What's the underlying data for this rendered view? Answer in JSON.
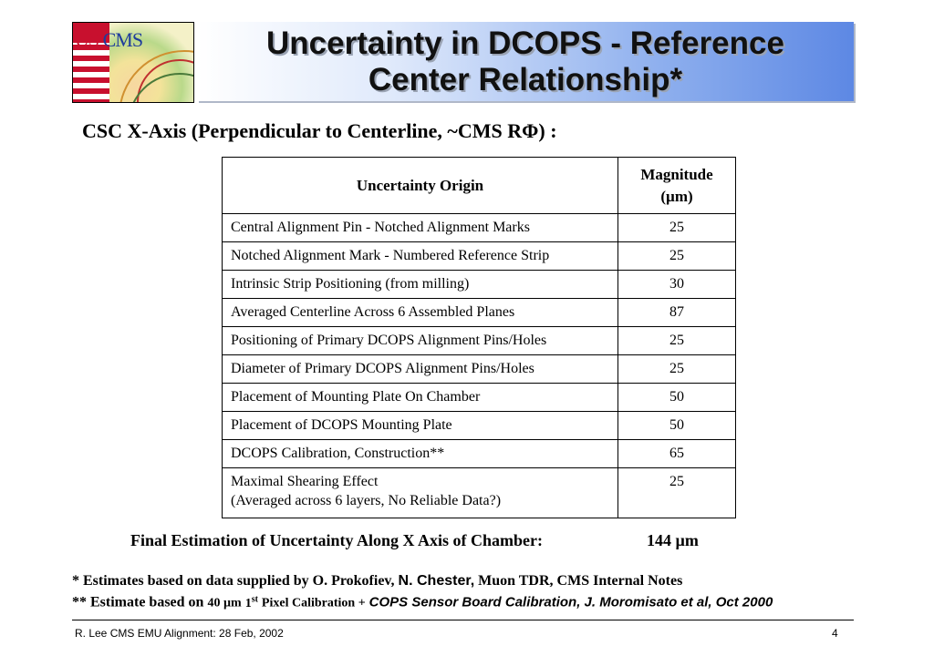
{
  "logo": {
    "text_us": "US",
    "text_cms": "CMS"
  },
  "title": {
    "line1": "Uncertainty in DCOPS - Reference",
    "line2": "Center Relationship*"
  },
  "subtitle": "CSC X-Axis (Perpendicular to Centerline, ~CMS RΦ) :",
  "table": {
    "headers": {
      "origin": "Uncertainty Origin",
      "magnitude_line1": "Magnitude",
      "magnitude_line2": "(µm)"
    },
    "rows": [
      {
        "origin": "Central Alignment Pin - Notched Alignment Marks",
        "magnitude": "25"
      },
      {
        "origin": "Notched Alignment Mark - Numbered Reference Strip",
        "magnitude": "25"
      },
      {
        "origin": "Intrinsic Strip Positioning (from milling)",
        "magnitude": "30"
      },
      {
        "origin": "Averaged Centerline Across 6 Assembled Planes",
        "magnitude": "87"
      },
      {
        "origin": "Positioning of Primary DCOPS Alignment Pins/Holes",
        "magnitude": "25"
      },
      {
        "origin": "Diameter of Primary DCOPS Alignment Pins/Holes",
        "magnitude": "25"
      },
      {
        "origin": "Placement of Mounting Plate On Chamber",
        "magnitude": "50"
      },
      {
        "origin": "Placement of DCOPS Mounting Plate",
        "magnitude": "50"
      },
      {
        "origin": "DCOPS Calibration, Construction**",
        "magnitude": "65"
      }
    ],
    "last_row": {
      "origin_line1": "Maximal Shearing Effect",
      "origin_line2": "(Averaged across 6 layers, No Reliable Data?)",
      "magnitude": "25"
    }
  },
  "final": {
    "label": "Final Estimation of Uncertainty Along X Axis of Chamber:",
    "value": "144 µm"
  },
  "notes": {
    "note1_prefix": "*   Estimates based on data supplied by O. Prokofiev,",
    "note1_name": "N. Chester,",
    "note1_suffix": "Muon TDR, CMS Internal Notes",
    "note2_prefix": "** Estimate based on",
    "note2_value": "40 µm",
    "note2_sup_num": "1",
    "note2_sup": "st",
    "note2_mid": "Pixel Calibration +",
    "note2_italic": "COPS Sensor Board Calibration, J. Moromisato et al, Oct 2000"
  },
  "footer": {
    "left": "R. Lee CMS EMU Alignment: 28 Feb, 2002",
    "page": "4"
  }
}
